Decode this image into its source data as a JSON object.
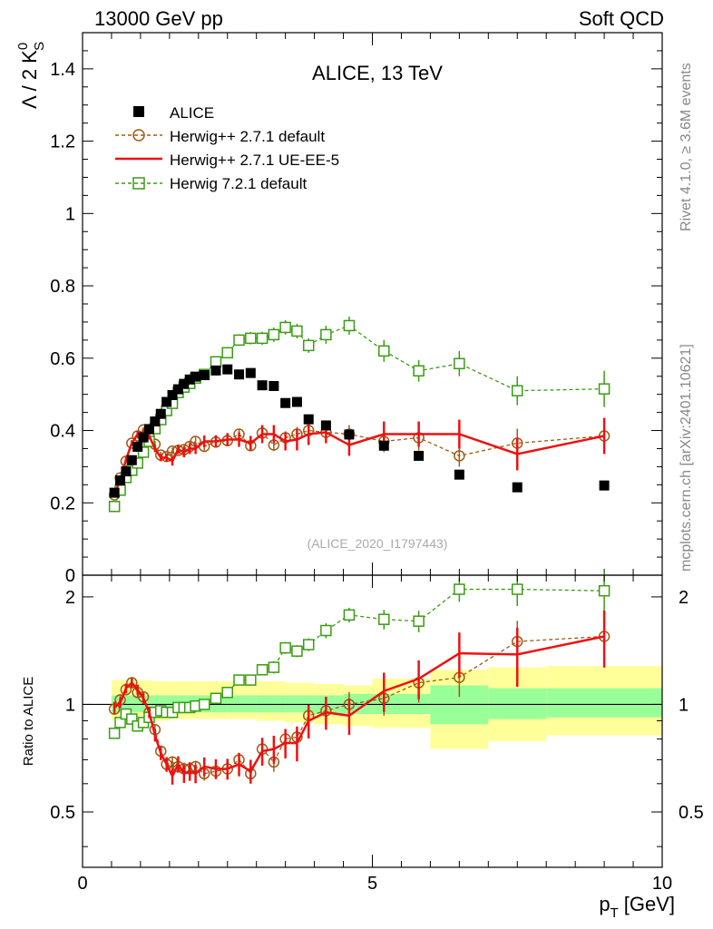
{
  "header": {
    "left": "13000 GeV pp",
    "right": "Soft QCD"
  },
  "side_text": {
    "rivet": "Rivet 4.1.0, ≥ 3.6M events",
    "mcplots": "mcplots.cern.ch [arXiv:2401.10621]"
  },
  "colors": {
    "alice": "#000000",
    "herwigpp_default": "#a05a14",
    "herwigpp_ueee5": "#ee1111",
    "herwig7": "#3a9c14",
    "band_outer": "#ffff99",
    "band_inner": "#99ff99"
  },
  "chart_data": [
    {
      "type": "scatter",
      "title": "ALICE, 13 TeV",
      "watermark": "(ALICE_2020_I1797443)",
      "ylabel": "Λ / 2 K",
      "ylabel_sup": "0",
      "ylabel_sub": "S",
      "xlim": [
        0,
        10
      ],
      "ylim": [
        0,
        1.5
      ],
      "yticks": [
        0,
        0.2,
        0.4,
        0.6,
        0.8,
        1,
        1.2,
        1.4
      ],
      "ytick_labels": [
        "0",
        "0.2",
        "0.4",
        "0.6",
        "0.8",
        "1",
        "1.2",
        "1.4"
      ],
      "legend": [
        "ALICE",
        "Herwig++ 2.7.1 default",
        "Herwig++ 2.7.1 UE-EE-5",
        "Herwig 7.2.1 default"
      ],
      "series": [
        {
          "name": "ALICE",
          "x": [
            0.55,
            0.65,
            0.75,
            0.85,
            0.95,
            1.05,
            1.15,
            1.25,
            1.35,
            1.45,
            1.55,
            1.65,
            1.75,
            1.85,
            1.95,
            2.1,
            2.3,
            2.5,
            2.7,
            2.9,
            3.1,
            3.3,
            3.5,
            3.7,
            3.9,
            4.2,
            4.6,
            5.2,
            5.8,
            6.5,
            7.5,
            9.0
          ],
          "y": [
            0.228,
            0.262,
            0.287,
            0.318,
            0.355,
            0.381,
            0.404,
            0.425,
            0.446,
            0.479,
            0.498,
            0.514,
            0.529,
            0.541,
            0.549,
            0.553,
            0.566,
            0.569,
            0.555,
            0.559,
            0.525,
            0.523,
            0.476,
            0.479,
            0.431,
            0.414,
            0.389,
            0.358,
            0.33,
            0.278,
            0.243,
            0.248
          ]
        },
        {
          "name": "Herwig++ 2.7.1 default",
          "x": [
            0.55,
            0.65,
            0.75,
            0.85,
            0.95,
            1.05,
            1.15,
            1.25,
            1.35,
            1.45,
            1.55,
            1.65,
            1.75,
            1.85,
            1.95,
            2.1,
            2.3,
            2.5,
            2.7,
            2.9,
            3.1,
            3.3,
            3.5,
            3.7,
            3.9,
            4.2,
            4.6,
            5.2,
            5.8,
            6.5,
            7.5,
            9.0
          ],
          "y": [
            0.222,
            0.269,
            0.315,
            0.365,
            0.385,
            0.402,
            0.383,
            0.362,
            0.332,
            0.328,
            0.343,
            0.345,
            0.347,
            0.356,
            0.37,
            0.356,
            0.368,
            0.372,
            0.39,
            0.358,
            0.393,
            0.36,
            0.38,
            0.39,
            0.4,
            0.395,
            0.39,
            0.37,
            0.38,
            0.33,
            0.365,
            0.385
          ],
          "yerr": [
            0.006,
            0.006,
            0.006,
            0.007,
            0.008,
            0.008,
            0.008,
            0.009,
            0.009,
            0.009,
            0.01,
            0.01,
            0.011,
            0.011,
            0.011,
            0.012,
            0.013,
            0.014,
            0.014,
            0.015,
            0.016,
            0.017,
            0.018,
            0.02,
            0.02,
            0.02,
            0.025,
            0.03,
            0.035,
            0.03,
            0.04,
            0.04
          ]
        },
        {
          "name": "Herwig++ 2.7.1 UE-EE-5",
          "x": [
            0.55,
            0.65,
            0.75,
            0.85,
            0.95,
            1.05,
            1.15,
            1.25,
            1.35,
            1.45,
            1.55,
            1.65,
            1.75,
            1.85,
            1.95,
            2.1,
            2.3,
            2.5,
            2.7,
            2.9,
            3.1,
            3.3,
            3.5,
            3.7,
            3.9,
            4.2,
            4.6,
            5.2,
            5.8,
            6.5,
            7.5,
            9.0
          ],
          "y": [
            0.225,
            0.262,
            0.32,
            0.365,
            0.39,
            0.395,
            0.385,
            0.35,
            0.325,
            0.325,
            0.315,
            0.348,
            0.34,
            0.35,
            0.35,
            0.37,
            0.37,
            0.375,
            0.375,
            0.365,
            0.39,
            0.39,
            0.37,
            0.375,
            0.39,
            0.395,
            0.36,
            0.39,
            0.39,
            0.39,
            0.335,
            0.385
          ],
          "yerr": [
            0.006,
            0.006,
            0.007,
            0.008,
            0.009,
            0.01,
            0.01,
            0.01,
            0.01,
            0.011,
            0.012,
            0.013,
            0.014,
            0.015,
            0.015,
            0.016,
            0.017,
            0.018,
            0.02,
            0.02,
            0.025,
            0.025,
            0.025,
            0.03,
            0.03,
            0.03,
            0.03,
            0.035,
            0.035,
            0.04,
            0.045,
            0.05
          ]
        },
        {
          "name": "Herwig 7.2.1 default",
          "x": [
            0.55,
            0.65,
            0.75,
            0.85,
            0.95,
            1.05,
            1.15,
            1.25,
            1.35,
            1.45,
            1.55,
            1.65,
            1.75,
            1.85,
            1.95,
            2.1,
            2.3,
            2.5,
            2.7,
            2.9,
            3.1,
            3.3,
            3.5,
            3.7,
            3.9,
            4.2,
            4.6,
            5.2,
            5.8,
            6.5,
            7.5,
            9.0
          ],
          "y": [
            0.19,
            0.235,
            0.27,
            0.29,
            0.31,
            0.34,
            0.37,
            0.405,
            0.43,
            0.455,
            0.475,
            0.505,
            0.52,
            0.53,
            0.545,
            0.555,
            0.59,
            0.615,
            0.65,
            0.655,
            0.655,
            0.665,
            0.685,
            0.675,
            0.635,
            0.665,
            0.69,
            0.62,
            0.565,
            0.585,
            0.51,
            0.515
          ],
          "yerr": [
            0.005,
            0.006,
            0.006,
            0.006,
            0.007,
            0.008,
            0.008,
            0.008,
            0.009,
            0.009,
            0.01,
            0.01,
            0.011,
            0.011,
            0.012,
            0.013,
            0.014,
            0.015,
            0.016,
            0.017,
            0.018,
            0.02,
            0.02,
            0.02,
            0.02,
            0.025,
            0.025,
            0.03,
            0.03,
            0.035,
            0.04,
            0.05
          ]
        }
      ]
    },
    {
      "type": "line",
      "ylabel": "Ratio to ALICE",
      "xlabel": "p",
      "xlabel_sub": "T",
      "xlabel_unit": "[GeV]",
      "xlim": [
        0,
        10
      ],
      "ylim": [
        0.35,
        2.3
      ],
      "yscale": "log",
      "xticks": [
        0,
        5,
        10
      ],
      "xtick_labels": [
        "0",
        "5",
        "10"
      ],
      "yticks": [
        0.5,
        1,
        2
      ],
      "ytick_labels": [
        "0.5",
        "1",
        "2"
      ],
      "bands": {
        "edges": [
          0.5,
          1.2,
          1.5,
          2.0,
          2.5,
          3.0,
          3.5,
          4.0,
          4.5,
          5.0,
          6.0,
          7.0,
          8.0,
          10.0
        ],
        "outer_lo": [
          0.9,
          0.9,
          0.91,
          0.91,
          0.91,
          0.9,
          0.89,
          0.88,
          0.87,
          0.86,
          0.75,
          0.79,
          0.82,
          0.82
        ],
        "outer_hi": [
          1.17,
          1.16,
          1.16,
          1.16,
          1.16,
          1.16,
          1.15,
          1.14,
          1.13,
          1.18,
          1.25,
          1.27,
          1.28,
          1.28
        ],
        "inner_lo": [
          0.95,
          0.95,
          0.95,
          0.95,
          0.95,
          0.95,
          0.95,
          0.94,
          0.94,
          0.94,
          0.88,
          0.91,
          0.92,
          0.92
        ],
        "inner_hi": [
          1.06,
          1.06,
          1.06,
          1.06,
          1.06,
          1.06,
          1.06,
          1.06,
          1.07,
          1.07,
          1.13,
          1.11,
          1.11,
          1.11
        ]
      },
      "series": [
        {
          "name": "Herwig++ 2.7.1 default",
          "x": [
            0.55,
            0.65,
            0.75,
            0.85,
            0.95,
            1.05,
            1.15,
            1.25,
            1.35,
            1.45,
            1.55,
            1.65,
            1.75,
            1.85,
            1.95,
            2.1,
            2.3,
            2.5,
            2.7,
            2.9,
            3.1,
            3.3,
            3.5,
            3.7,
            3.9,
            4.2,
            4.6,
            5.2,
            5.8,
            6.5,
            7.5,
            9.0
          ],
          "y": [
            0.97,
            1.03,
            1.1,
            1.15,
            1.08,
            1.05,
            0.95,
            0.85,
            0.74,
            0.68,
            0.69,
            0.67,
            0.66,
            0.66,
            0.67,
            0.64,
            0.65,
            0.66,
            0.7,
            0.64,
            0.75,
            0.69,
            0.8,
            0.81,
            0.93,
            0.96,
            1.0,
            1.04,
            1.15,
            1.19,
            1.5,
            1.55
          ]
        },
        {
          "name": "Herwig++ 2.7.1 UE-EE-5",
          "x": [
            0.55,
            0.65,
            0.75,
            0.85,
            0.95,
            1.05,
            1.15,
            1.25,
            1.35,
            1.45,
            1.55,
            1.65,
            1.75,
            1.85,
            1.95,
            2.1,
            2.3,
            2.5,
            2.7,
            2.9,
            3.1,
            3.3,
            3.5,
            3.7,
            3.9,
            4.2,
            4.6,
            5.2,
            5.8,
            6.5,
            7.5,
            9.0
          ],
          "y": [
            0.98,
            1.01,
            1.11,
            1.15,
            1.1,
            1.04,
            0.95,
            0.82,
            0.73,
            0.68,
            0.63,
            0.68,
            0.64,
            0.65,
            0.64,
            0.67,
            0.66,
            0.66,
            0.68,
            0.65,
            0.74,
            0.75,
            0.78,
            0.78,
            0.9,
            0.95,
            0.93,
            1.09,
            1.18,
            1.39,
            1.38,
            1.55
          ]
        },
        {
          "name": "Herwig 7.2.1 default",
          "x": [
            0.55,
            0.65,
            0.75,
            0.85,
            0.95,
            1.05,
            1.15,
            1.25,
            1.35,
            1.45,
            1.55,
            1.65,
            1.75,
            1.85,
            1.95,
            2.1,
            2.3,
            2.5,
            2.7,
            2.9,
            3.1,
            3.3,
            3.5,
            3.7,
            3.9,
            4.2,
            4.6,
            5.2,
            5.8,
            6.5,
            7.5,
            9.0
          ],
          "y": [
            0.83,
            0.89,
            0.94,
            0.91,
            0.87,
            0.89,
            0.92,
            0.95,
            0.96,
            0.95,
            0.95,
            0.98,
            0.98,
            0.98,
            0.99,
            1.0,
            1.04,
            1.08,
            1.17,
            1.17,
            1.25,
            1.27,
            1.44,
            1.41,
            1.47,
            1.61,
            1.78,
            1.73,
            1.71,
            2.1,
            2.1,
            2.08
          ]
        }
      ]
    }
  ]
}
